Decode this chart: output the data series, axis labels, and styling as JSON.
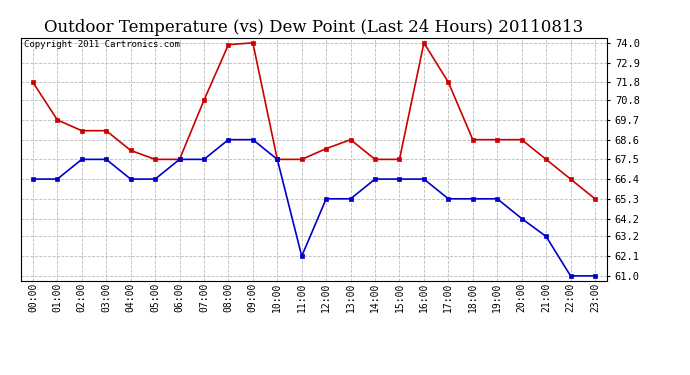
{
  "title": "Outdoor Temperature (vs) Dew Point (Last 24 Hours) 20110813",
  "copyright": "Copyright 2011 Cartronics.com",
  "x_labels": [
    "00:00",
    "01:00",
    "02:00",
    "03:00",
    "04:00",
    "05:00",
    "06:00",
    "07:00",
    "08:00",
    "09:00",
    "10:00",
    "11:00",
    "12:00",
    "13:00",
    "14:00",
    "15:00",
    "16:00",
    "17:00",
    "18:00",
    "19:00",
    "20:00",
    "21:00",
    "22:00",
    "23:00"
  ],
  "temp_values": [
    71.8,
    69.7,
    69.1,
    69.1,
    68.0,
    67.5,
    67.5,
    70.8,
    73.9,
    74.0,
    67.5,
    67.5,
    68.1,
    68.6,
    67.5,
    67.5,
    74.0,
    71.8,
    68.6,
    68.6,
    68.6,
    67.5,
    66.4,
    65.3
  ],
  "dew_values": [
    66.4,
    66.4,
    67.5,
    67.5,
    66.4,
    66.4,
    67.5,
    67.5,
    68.6,
    68.6,
    67.5,
    62.1,
    65.3,
    65.3,
    66.4,
    66.4,
    66.4,
    65.3,
    65.3,
    65.3,
    64.2,
    63.2,
    61.0,
    61.0
  ],
  "temp_color": "#cc0000",
  "dew_color": "#0000cc",
  "y_min": 61.0,
  "y_max": 74.0,
  "y_ticks": [
    61.0,
    62.1,
    63.2,
    64.2,
    65.3,
    66.4,
    67.5,
    68.6,
    69.7,
    70.8,
    71.8,
    72.9,
    74.0
  ],
  "bg_color": "#ffffff",
  "plot_bg_color": "#ffffff",
  "grid_color": "#bbbbbb",
  "title_fontsize": 12,
  "copyright_fontsize": 6.5,
  "tick_fontsize": 7.5,
  "x_tick_fontsize": 7.0
}
